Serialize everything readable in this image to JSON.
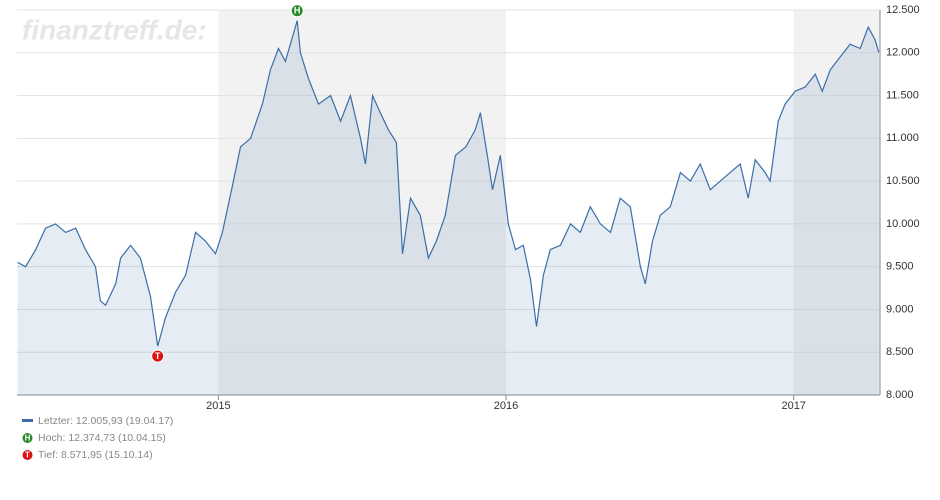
{
  "chart_data": {
    "type": "line",
    "watermark": "finanztreff.de:",
    "x": [
      2014.302,
      2014.33,
      2014.365,
      2014.399,
      2014.434,
      2014.469,
      2014.504,
      2014.538,
      2014.573,
      2014.59,
      2014.608,
      2014.643,
      2014.66,
      2014.695,
      2014.729,
      2014.764,
      2014.789,
      2014.816,
      2014.851,
      2014.886,
      2014.921,
      2014.955,
      2014.99,
      2015.014,
      2015.049,
      2015.077,
      2015.112,
      2015.153,
      2015.181,
      2015.209,
      2015.233,
      2015.274,
      2015.285,
      2015.313,
      2015.348,
      2015.39,
      2015.425,
      2015.459,
      2015.494,
      2015.511,
      2015.536,
      2015.563,
      2015.591,
      2015.619,
      2015.64,
      2015.668,
      2015.702,
      2015.73,
      2015.758,
      2015.789,
      2015.824,
      2015.86,
      2015.893,
      2015.911,
      2015.935,
      2015.953,
      2015.98,
      2016.008,
      2016.033,
      2016.06,
      2016.085,
      2016.106,
      2016.13,
      2016.154,
      2016.189,
      2016.224,
      2016.258,
      2016.293,
      2016.328,
      2016.363,
      2016.397,
      2016.432,
      2016.467,
      2016.484,
      2016.509,
      2016.536,
      2016.571,
      2016.606,
      2016.641,
      2016.675,
      2016.71,
      2016.745,
      2016.779,
      2016.814,
      2016.842,
      2016.866,
      2016.901,
      2016.918,
      2016.946,
      2016.97,
      2017.005,
      2017.04,
      2017.075,
      2017.099,
      2017.127,
      2017.161,
      2017.196,
      2017.231,
      2017.259,
      2017.283,
      2017.296
    ],
    "series": [
      {
        "name": "Letzter: 12.005,93 (19.04.17)",
        "color": "#3b6ea8",
        "values": [
          9550,
          9500,
          9700,
          9950,
          10000,
          9900,
          9950,
          9700,
          9500,
          9100,
          9050,
          9300,
          9600,
          9750,
          9600,
          9150,
          8571.95,
          8900,
          9200,
          9400,
          9900,
          9800,
          9650,
          9900,
          10450,
          10900,
          11000,
          11400,
          11800,
          12050,
          11900,
          12374.73,
          12000,
          11700,
          11400,
          11500,
          11200,
          11500,
          11000,
          10700,
          11500,
          11300,
          11100,
          10950,
          9650,
          10300,
          10100,
          9600,
          9800,
          10100,
          10800,
          10900,
          11100,
          11300,
          10800,
          10400,
          10800,
          10000,
          9700,
          9750,
          9350,
          8800,
          9400,
          9700,
          9750,
          10000,
          9900,
          10200,
          10000,
          9900,
          10300,
          10200,
          9500,
          9300,
          9800,
          10100,
          10200,
          10600,
          10500,
          10700,
          10400,
          10500,
          10600,
          10700,
          10300,
          10750,
          10600,
          10500,
          11200,
          11400,
          11550,
          11600,
          11750,
          11550,
          11800,
          11950,
          12100,
          12050,
          12300,
          12150,
          12005.93
        ]
      }
    ],
    "high": {
      "label": "H",
      "text": "Hoch: 12.374,73 (10.04.15)",
      "x": 2015.274,
      "value": 12374.73,
      "color": "#2a8a2a"
    },
    "low": {
      "label": "T",
      "text": "Tief: 8.571,95 (15.10.14)",
      "x": 2014.789,
      "value": 8571.95,
      "color": "#dd1111"
    },
    "xlim": [
      2014.3,
      2017.3
    ],
    "xticks": [
      2015,
      2016,
      2017
    ],
    "ylim": [
      8000,
      12500
    ],
    "yticks": [
      {
        "value": 8000,
        "label": "8.000"
      },
      {
        "value": 8500,
        "label": "8.500"
      },
      {
        "value": 9000,
        "label": "9.000"
      },
      {
        "value": 9500,
        "label": "9.500"
      },
      {
        "value": 10000,
        "label": "10.000"
      },
      {
        "value": 10500,
        "label": "10.500"
      },
      {
        "value": 11000,
        "label": "11.000"
      },
      {
        "value": 11500,
        "label": "11.500"
      },
      {
        "value": 12000,
        "label": "12.000"
      },
      {
        "value": 12500,
        "label": "12.500"
      }
    ],
    "grid": true
  }
}
